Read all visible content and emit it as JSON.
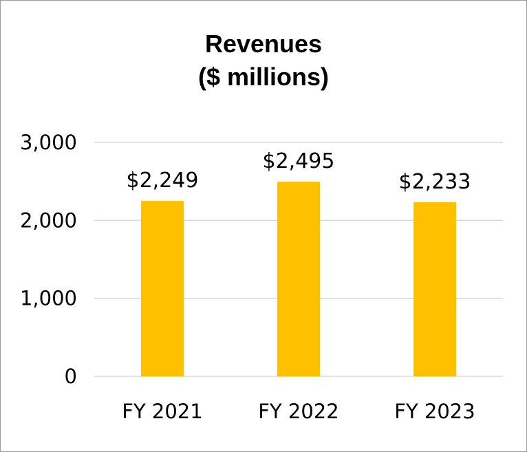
{
  "chart_data": {
    "type": "bar",
    "title_line1": "Revenues",
    "title_line2": "($ millions)",
    "categories": [
      "FY 2021",
      "FY 2022",
      "FY 2023"
    ],
    "values": [
      2249,
      2495,
      2233
    ],
    "data_labels": [
      "$2,249",
      "$2,495",
      "$2,233"
    ],
    "yticks": [
      0,
      1000,
      2000,
      3000
    ],
    "ytick_labels": [
      "0",
      "1,000",
      "2,000",
      "3,000"
    ],
    "ylim": [
      0,
      3000
    ],
    "grid": true,
    "xlabel": "",
    "ylabel": "",
    "bar_color": "#FFC000",
    "grid_color": "#D9D9D9"
  }
}
